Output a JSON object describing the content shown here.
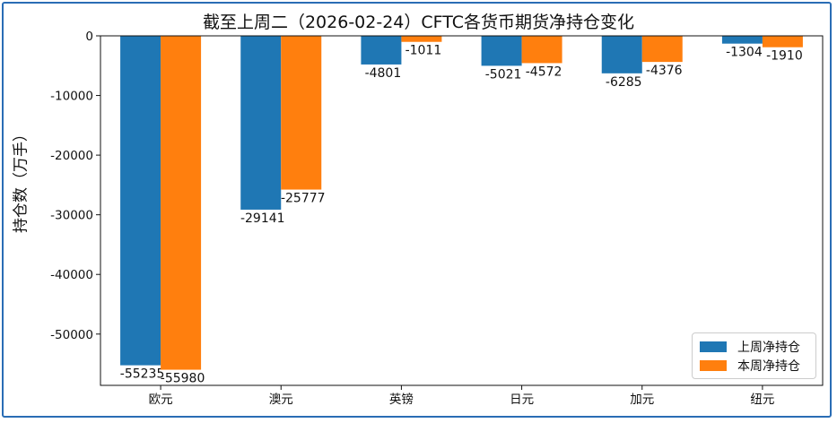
{
  "chart_data": {
    "type": "bar",
    "title": "截至上周二（2026-02-24）CFTC各货币期货净持仓变化",
    "xlabel": "",
    "ylabel": "持仓数（万手）",
    "categories": [
      "欧元",
      "澳元",
      "英镑",
      "日元",
      "加元",
      "纽元"
    ],
    "series": [
      {
        "name": "上周净持仓",
        "color": "#1f77b4",
        "values": [
          -55235,
          -29141,
          -4801,
          -5021,
          -6285,
          -1304
        ]
      },
      {
        "name": "本周净持仓",
        "color": "#ff7f0e",
        "values": [
          -55980,
          -25777,
          -1011,
          -4572,
          -4376,
          -1910
        ]
      }
    ],
    "yticks": [
      0,
      -10000,
      -20000,
      -30000,
      -40000,
      -50000
    ],
    "ylim": [
      -58600,
      0
    ],
    "grid": false,
    "legend_position": "lower-right"
  }
}
